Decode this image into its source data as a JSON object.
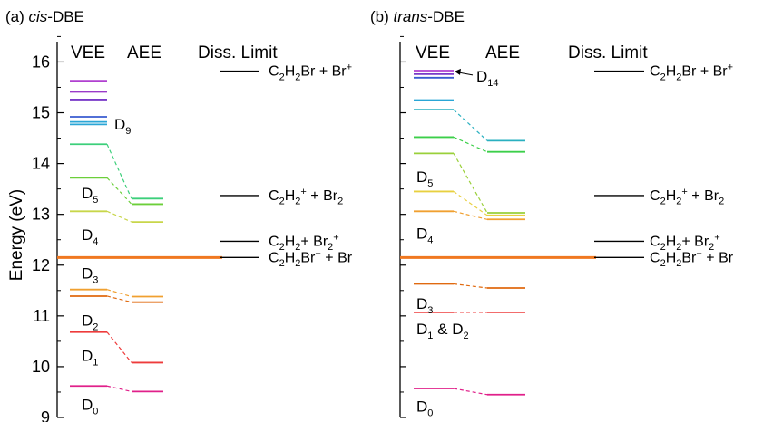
{
  "chart_data": [
    {
      "type": "energy-level-diagram",
      "title_prefix": "(a) ",
      "title_italic": "cis",
      "title_suffix": "-DBE",
      "ylabel": "Energy (eV)",
      "ylim": [
        9,
        16.4
      ],
      "yticks": [
        9,
        10,
        11,
        12,
        13,
        14,
        15,
        16
      ],
      "column_labels": {
        "vee": "VEE",
        "aee": "AEE",
        "diss": "Diss. Limit"
      },
      "vee_levels": [
        {
          "e": 9.62,
          "color": "#e0208a"
        },
        {
          "e": 10.68,
          "color": "#ee3b3b"
        },
        {
          "e": 11.39,
          "color": "#e06a10"
        },
        {
          "e": 11.52,
          "color": "#f0a030"
        },
        {
          "e": 13.06,
          "color": "#c8d64a"
        },
        {
          "e": 13.72,
          "color": "#6ccf3a"
        },
        {
          "e": 14.38,
          "color": "#3ccf7a"
        },
        {
          "e": 14.77,
          "color": "#2aa6d6"
        },
        {
          "e": 14.82,
          "color": "#2aa6d6"
        },
        {
          "e": 14.92,
          "color": "#3a5bd0"
        },
        {
          "e": 15.26,
          "color": "#7a3ac8"
        },
        {
          "e": 15.41,
          "color": "#9a3ac8"
        },
        {
          "e": 15.63,
          "color": "#b040d0"
        }
      ],
      "aee_levels": [
        {
          "e": 9.51,
          "color": "#e0208a"
        },
        {
          "e": 10.08,
          "color": "#ee3b3b"
        },
        {
          "e": 11.27,
          "color": "#e06a10"
        },
        {
          "e": 11.38,
          "color": "#f0a030"
        },
        {
          "e": 12.85,
          "color": "#c8d64a"
        },
        {
          "e": 13.2,
          "color": "#6ccf3a"
        },
        {
          "e": 13.31,
          "color": "#3ccf7a"
        }
      ],
      "connections": [
        {
          "from": 9.62,
          "to": 9.51,
          "color": "#e0208a"
        },
        {
          "from": 10.68,
          "to": 10.08,
          "color": "#ee3b3b"
        },
        {
          "from": 11.39,
          "to": 11.27,
          "color": "#e06a10"
        },
        {
          "from": 11.52,
          "to": 11.38,
          "color": "#f0a030"
        },
        {
          "from": 13.06,
          "to": 12.85,
          "color": "#c8d64a"
        },
        {
          "from": 13.72,
          "to": 13.2,
          "color": "#6ccf3a"
        },
        {
          "from": 14.38,
          "to": 13.31,
          "color": "#3ccf7a"
        }
      ],
      "state_labels": [
        {
          "base": "D",
          "sub": "0",
          "e": 9.26
        },
        {
          "base": "D",
          "sub": "1",
          "e": 10.22
        },
        {
          "base": "D",
          "sub": "2",
          "e": 10.92
        },
        {
          "base": "D",
          "sub": "3",
          "e": 11.84
        },
        {
          "base": "D",
          "sub": "4",
          "e": 12.6
        },
        {
          "base": "D",
          "sub": "5",
          "e": 13.42
        },
        {
          "base": "D",
          "sub": "9",
          "e": 14.78,
          "pos": "right"
        }
      ],
      "ion_threshold": {
        "e": 12.15,
        "color": "#f07820"
      },
      "diss_limits": [
        {
          "e": 15.82,
          "label": "C₂H₂Br + Br⁺"
        },
        {
          "e": 13.37,
          "label": "C₂H₂⁺ + Br₂"
        },
        {
          "e": 12.47,
          "label": "C₂H₂+ Br₂⁺"
        },
        {
          "e": 12.15,
          "label": "C₂H₂Br⁺ + Br"
        }
      ]
    },
    {
      "type": "energy-level-diagram",
      "title_prefix": "(b) ",
      "title_italic": "trans",
      "title_suffix": "-DBE",
      "ylim": [
        9,
        16.4
      ],
      "column_labels": {
        "vee": "VEE",
        "aee": "AEE",
        "diss": "Diss. Limit"
      },
      "vee_levels": [
        {
          "e": 9.57,
          "color": "#e0208a"
        },
        {
          "e": 11.07,
          "color": "#ee3b3b"
        },
        {
          "e": 11.63,
          "color": "#e06a10"
        },
        {
          "e": 13.06,
          "color": "#f0a030"
        },
        {
          "e": 13.45,
          "color": "#e8d040"
        },
        {
          "e": 14.2,
          "color": "#9ad03a"
        },
        {
          "e": 14.52,
          "color": "#3ccf4a"
        },
        {
          "e": 15.06,
          "color": "#2ab0c0"
        },
        {
          "e": 15.25,
          "color": "#2aa6d6"
        },
        {
          "e": 15.69,
          "color": "#3a5bd0"
        },
        {
          "e": 15.76,
          "color": "#7a3ac8"
        },
        {
          "e": 15.83,
          "color": "#b040d0"
        }
      ],
      "aee_levels": [
        {
          "e": 9.45,
          "color": "#e0208a"
        },
        {
          "e": 11.07,
          "color": "#ee3b3b"
        },
        {
          "e": 11.55,
          "color": "#e06a10"
        },
        {
          "e": 12.9,
          "color": "#f0a030"
        },
        {
          "e": 12.98,
          "color": "#e8d040"
        },
        {
          "e": 13.03,
          "color": "#9ad03a"
        },
        {
          "e": 14.23,
          "color": "#3ccf4a"
        },
        {
          "e": 14.45,
          "color": "#2ab0c0"
        }
      ],
      "connections": [
        {
          "from": 9.57,
          "to": 9.45,
          "color": "#e0208a"
        },
        {
          "from": 11.07,
          "to": 11.07,
          "color": "#ee3b3b"
        },
        {
          "from": 11.63,
          "to": 11.55,
          "color": "#e06a10"
        },
        {
          "from": 13.06,
          "to": 12.9,
          "color": "#f0a030"
        },
        {
          "from": 13.45,
          "to": 12.98,
          "color": "#e8d040"
        },
        {
          "from": 14.2,
          "to": 13.03,
          "color": "#9ad03a"
        },
        {
          "from": 14.52,
          "to": 14.23,
          "color": "#3ccf4a"
        },
        {
          "from": 15.06,
          "to": 14.45,
          "color": "#2ab0c0"
        }
      ],
      "state_labels": [
        {
          "base": "D",
          "sub": "0",
          "e": 9.22
        },
        {
          "base": "D",
          "sub": "1",
          "extra": " & D",
          "sub2": "2",
          "e": 10.75
        },
        {
          "base": "D",
          "sub": "3",
          "e": 11.25
        },
        {
          "base": "D",
          "sub": "4",
          "e": 12.63
        },
        {
          "base": "D",
          "sub": "5",
          "e": 13.74
        },
        {
          "base": "D",
          "sub": "14",
          "e": 15.68,
          "pos": "arrow"
        }
      ],
      "ion_threshold": {
        "e": 12.15,
        "color": "#f07820"
      },
      "diss_limits": [
        {
          "e": 15.82,
          "label": "C₂H₂Br + Br⁺"
        },
        {
          "e": 13.37,
          "label": "C₂H₂⁺ + Br₂"
        },
        {
          "e": 12.47,
          "label": "C₂H₂+ Br₂⁺"
        },
        {
          "e": 12.15,
          "label": "C₂H₂Br⁺ + Br"
        }
      ]
    }
  ]
}
